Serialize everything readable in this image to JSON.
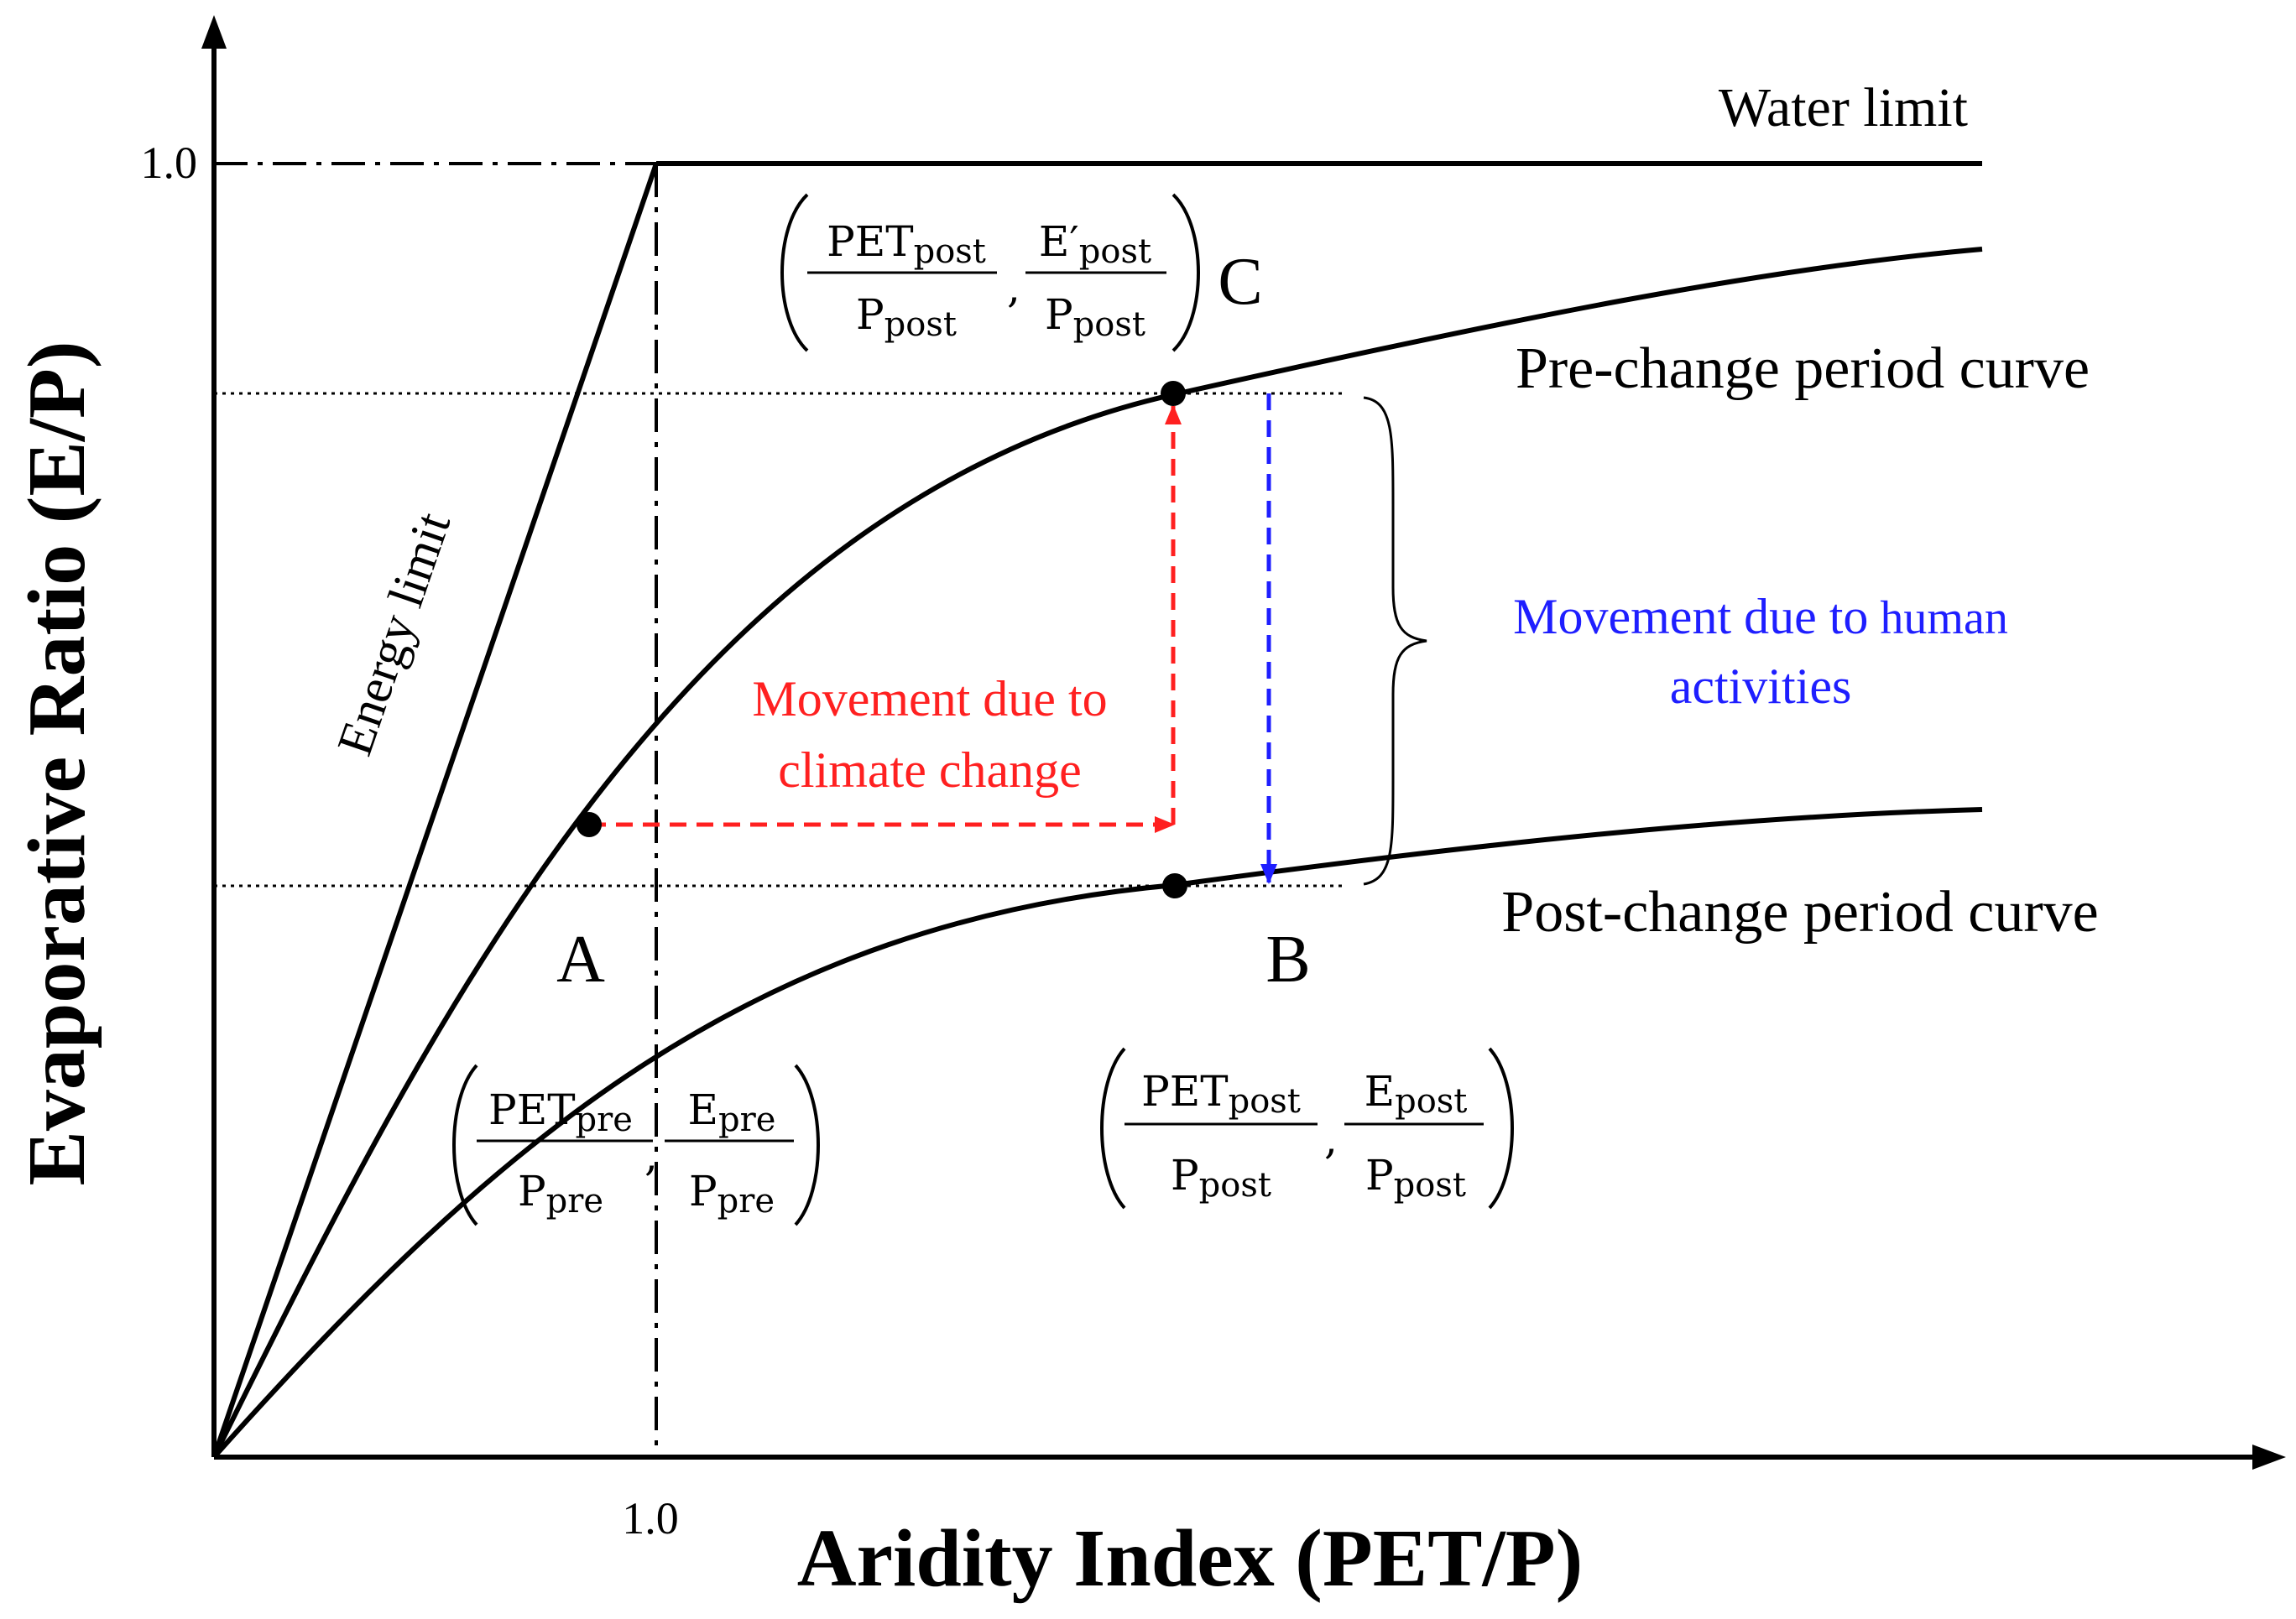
{
  "axes": {
    "x_title": "Aridity Index (PET/P)",
    "y_title": "Evaporative Ratio (E/P)",
    "x_tick": "1.0",
    "y_tick": "1.0"
  },
  "labels": {
    "water_limit": "Water limit",
    "energy_limit": "Energy limit",
    "pre_curve": "Pre-change period curve",
    "post_curve": "Post-change period curve"
  },
  "points": {
    "a": "A",
    "b": "B",
    "c": "C"
  },
  "annotations": {
    "climate_line1": "Movement due to",
    "climate_line2": "climate change",
    "human_line1a": "Movement due to",
    "human_line1b": " human",
    "human_line2": "activities"
  },
  "formulas": {
    "a": {
      "num1": "PET",
      "num1_sub": "pre",
      "den1": "P",
      "den1_sub": "pre",
      "num2": "E",
      "num2_sub": "pre",
      "den2": "P",
      "den2_sub": "pre"
    },
    "b": {
      "num1": "PET",
      "num1_sub": "post",
      "den1": "P",
      "den1_sub": "post",
      "num2": "E",
      "num2_sub": "post",
      "den2": "P",
      "den2_sub": "post"
    },
    "c": {
      "num1": "PET",
      "num1_sub": "post",
      "den1": "P",
      "den1_sub": "post",
      "num2": "E′",
      "num2_sub": "post",
      "den2": "P",
      "den2_sub": "post"
    }
  },
  "colors": {
    "ink": "#000000",
    "climate": "#ff2020",
    "human": "#1e1eff"
  }
}
